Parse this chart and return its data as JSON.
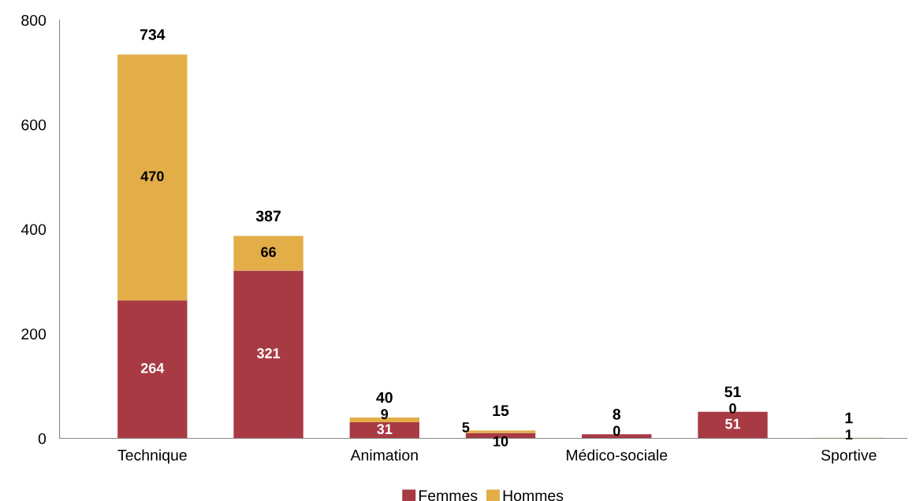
{
  "chart_data": {
    "type": "bar",
    "stacked": true,
    "categories": [
      "Technique",
      null,
      "Animation",
      null,
      "Médico-sociale",
      null,
      "Sportive"
    ],
    "series": [
      {
        "name": "Femmes",
        "color": "#a83a44",
        "values": [
          264,
          321,
          31,
          10,
          8,
          51,
          0
        ],
        "value_labels": [
          "264",
          "321",
          "31",
          "10",
          null,
          "51",
          null
        ]
      },
      {
        "name": "Hommes",
        "color": "#e3ad48",
        "values": [
          470,
          66,
          9,
          5,
          0,
          0,
          1
        ],
        "value_labels": [
          "470",
          "66",
          "9",
          "5",
          "0",
          "0",
          "1"
        ]
      }
    ],
    "totals": [
      "734",
      "387",
      "40",
      "15",
      "8",
      "51",
      "1"
    ],
    "ylim": [
      0,
      800
    ],
    "yticks": [
      0,
      200,
      400,
      600,
      800
    ],
    "grid": false,
    "legend": "bottom"
  }
}
